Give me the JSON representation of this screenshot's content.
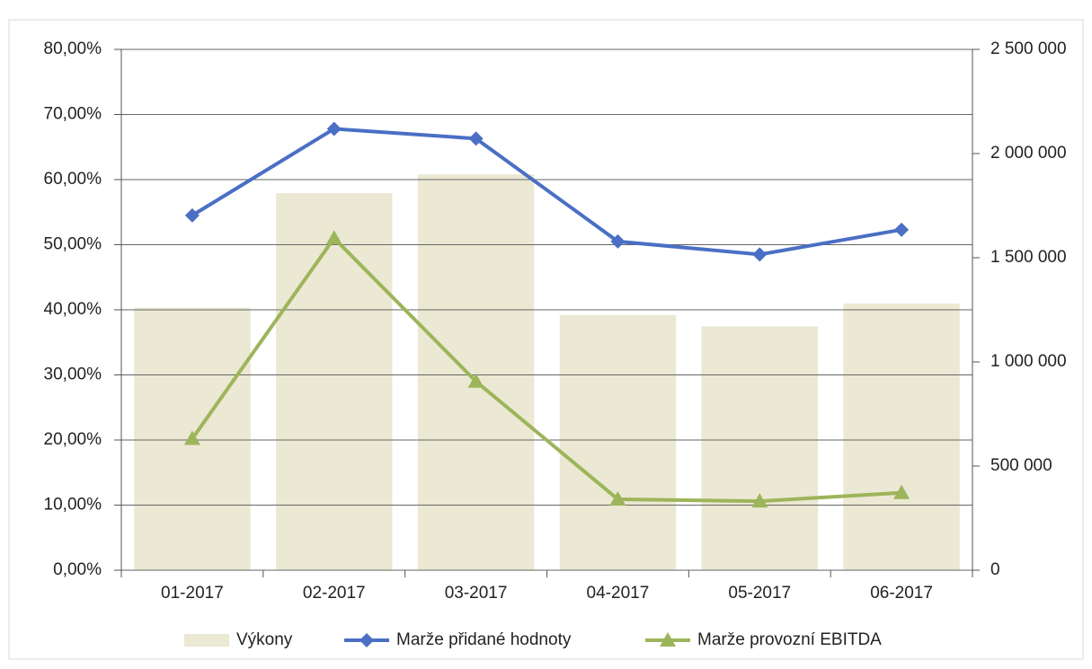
{
  "chart_data": {
    "type": "combo",
    "categories": [
      "01-2017",
      "02-2017",
      "03-2017",
      "04-2017",
      "05-2017",
      "06-2017"
    ],
    "series": [
      {
        "name": "Výkony",
        "type": "bar",
        "axis": "y2",
        "color": "#ebe8d3",
        "values": [
          1260000,
          1810000,
          1900000,
          1225000,
          1170000,
          1280000
        ]
      },
      {
        "name": "Marže přidané hodnoty",
        "type": "line",
        "marker": "diamond",
        "color": "#4a6fc4",
        "values": [
          54.5,
          67.8,
          66.3,
          50.5,
          48.5,
          52.3
        ]
      },
      {
        "name": "Marže provozní EBITDA",
        "type": "line",
        "marker": "triangle",
        "color": "#9db55a",
        "values": [
          20.2,
          51.0,
          29.0,
          10.9,
          10.6,
          11.9
        ]
      }
    ],
    "ylim": [
      0,
      80
    ],
    "yticks": [
      {
        "value": 0,
        "label": "0,00%"
      },
      {
        "value": 10,
        "label": "10,00%"
      },
      {
        "value": 20,
        "label": "20,00%"
      },
      {
        "value": 30,
        "label": "30,00%"
      },
      {
        "value": 40,
        "label": "40,00%"
      },
      {
        "value": 50,
        "label": "50,00%"
      },
      {
        "value": 60,
        "label": "60,00%"
      },
      {
        "value": 70,
        "label": "70,00%"
      },
      {
        "value": 80,
        "label": "80,00%"
      }
    ],
    "y2lim": [
      0,
      2500000
    ],
    "y2ticks": [
      0,
      {
        "value": 500000,
        "label": "500 000"
      },
      {
        "value": 1000000,
        "label": "1 000 000"
      },
      {
        "value": 1500000,
        "label": "1 500 000"
      },
      {
        "value": 2000000,
        "label": "2 000 000"
      },
      {
        "value": 2500000,
        "label": "2 500 000"
      }
    ],
    "grid": true,
    "legend": "bottom"
  }
}
